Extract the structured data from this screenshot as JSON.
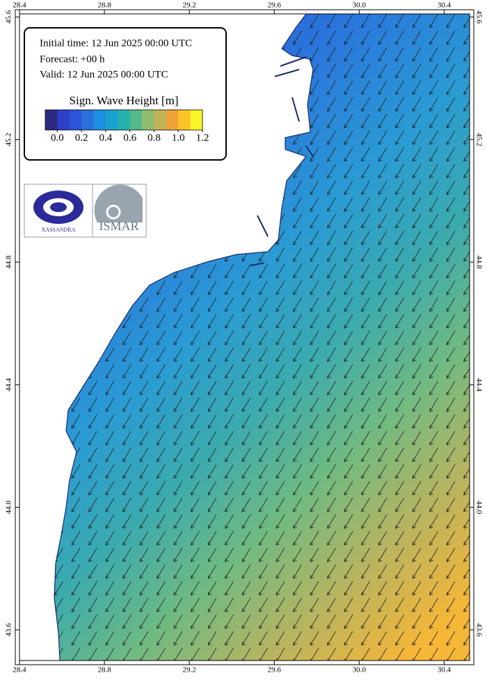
{
  "info": {
    "initial_time": "Initial time: 12 Jun 2025 00:00 UTC",
    "forecast": "Forecast: +00 h",
    "valid": "Valid: 12 Jun 2025 00:00 UTC"
  },
  "legend": {
    "title": "Sign. Wave Height [m]",
    "colors": [
      "#2c2a7f",
      "#2e3fc9",
      "#2b55d8",
      "#2a6fdb",
      "#1d8ee0",
      "#1aa2cf",
      "#28b0ae",
      "#55b88a",
      "#8ebd6e",
      "#c2b357",
      "#efa33a",
      "#fbc52a",
      "#f8f62a"
    ],
    "ticks": [
      {
        "value": 0,
        "label": "0.0"
      },
      0.2,
      0.4,
      0.6,
      0.8,
      {
        "value": 1,
        "label": "1.0"
      },
      1.2
    ]
  },
  "axes": {
    "xlim": [
      28.4,
      30.52
    ],
    "xticks": [
      28.4,
      28.8,
      29.2,
      29.6,
      {
        "value": 30,
        "label": "30.0"
      },
      30.4
    ],
    "ylim": [
      43.5,
      45.61
    ],
    "yticks": [
      43.6,
      {
        "value": 44,
        "label": "44.0"
      },
      44.4,
      44.8,
      45.2,
      45.6
    ]
  },
  "logos": {
    "left": "XASSANDRA",
    "right": "ISMAR"
  }
}
